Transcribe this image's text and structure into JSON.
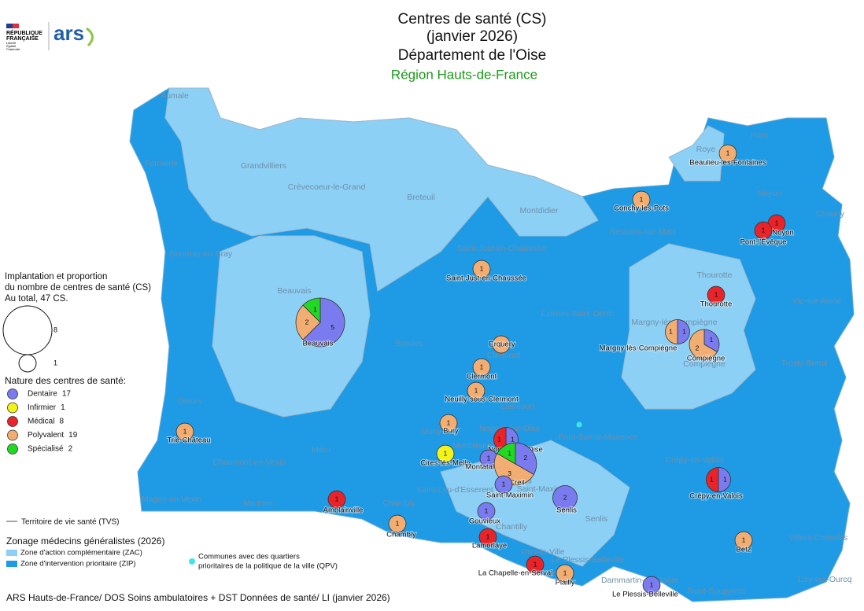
{
  "header": {
    "logo_left": [
      "RÉPUBLIQUE",
      "FRANÇAISE"
    ],
    "logo_motto": [
      "Liberté",
      "Égalité",
      "Fraternité"
    ],
    "logo_right": "ars",
    "title": [
      "Centres de santé (CS)",
      "(janvier 2026)",
      "Département de l'Oise"
    ],
    "region": "Région Hauts-de-France"
  },
  "legend": {
    "size": {
      "title": [
        "Implantation et proportion",
        "du nombre de centres de santé (CS)",
        "Au total, 47 CS."
      ],
      "values": [
        8,
        1
      ]
    },
    "nature": {
      "title": "Nature des centres de santé:",
      "items": [
        {
          "name": "Dentaire",
          "count": 17,
          "color": "#7b7bf0"
        },
        {
          "name": "Infirmier",
          "count": 1,
          "color": "#f2f21c"
        },
        {
          "name": "Médical",
          "count": 8,
          "color": "#e8232a"
        },
        {
          "name": "Polyvalent",
          "count": 19,
          "color": "#f2ae72"
        },
        {
          "name": "Spécialisé",
          "count": 2,
          "color": "#22d822"
        }
      ]
    },
    "tvs": "Territoire de vie santé (TVS)",
    "zonage": {
      "title": "Zonage médecins généralistes (2026)",
      "items": [
        {
          "name": "Zone d'action complémentaire (ZAC)",
          "color": "#8dd0f5"
        },
        {
          "name": "Zone d'intervention prioritaire (ZIP)",
          "color": "#1f9be6"
        }
      ]
    },
    "qpv": {
      "lines": [
        "Communes avec des quartiers",
        "prioritaires de la politique de la ville (QPV)"
      ],
      "color": "#3ee6e6"
    }
  },
  "map": {
    "territories": [
      "Aumale",
      "Formerie",
      "Grandvilliers",
      "Crèvecoeur-le-Grand",
      "Breteuil",
      "Montdidier",
      "Roye",
      "Ham",
      "Noyon",
      "Chauny",
      "Gournay-en-Bray",
      "Beauvais",
      "Saint-Just-en-Chaussée",
      "Ressons-sur-Matz",
      "Thourotte",
      "Vic-sur-Aisne",
      "Margny-lès-Compiègne",
      "Estrées-Saint-Denis",
      "Compiègne",
      "Bresles",
      "Clermont",
      "Trosly-Breuil",
      "Gisors",
      "Liancourt",
      "Mouy",
      "Nogent-sur-Oise",
      "Pont-Sainte-Maxence",
      "Crépy-en-Valois",
      "Montataire",
      "Méru",
      "Chaumont-en-Vexin",
      "Magny-en-Vexin",
      "Marines",
      "Chambly",
      "Saint-Leu-d'Esserent",
      "Creil",
      "Saint-Maximin",
      "Senlis",
      "Chantilly",
      "Orry-la-Ville",
      "Le Plessis-Belleville",
      "Villers-Cotterêts",
      "Lizy-sur-Ourcq",
      "Dammartin-en-Goële",
      "Saint-Soupplets"
    ],
    "centres": [
      {
        "name": "Beaulieu-les-Fontaines",
        "counts": [
          0,
          0,
          0,
          1,
          0
        ]
      },
      {
        "name": "Conchy-les-Pots",
        "counts": [
          0,
          0,
          0,
          1,
          0
        ]
      },
      {
        "name": "Noyon",
        "counts": [
          0,
          0,
          1,
          0,
          0
        ]
      },
      {
        "name": "Pont-l'Évêque",
        "counts": [
          0,
          0,
          1,
          0,
          0
        ]
      },
      {
        "name": "Saint-Just-en-Chaussée",
        "counts": [
          0,
          0,
          0,
          1,
          0
        ]
      },
      {
        "name": "Thourotte",
        "counts": [
          0,
          0,
          1,
          0,
          0
        ]
      },
      {
        "name": "Beauvais",
        "counts": [
          5,
          0,
          0,
          2,
          1
        ]
      },
      {
        "name": "Margny-lès-Compiègne",
        "counts": [
          1,
          0,
          0,
          1,
          0
        ]
      },
      {
        "name": "Compiègne",
        "counts": [
          1,
          0,
          0,
          2,
          0
        ]
      },
      {
        "name": "Erquery",
        "counts": [
          0,
          0,
          0,
          1,
          0
        ]
      },
      {
        "name": "Clermont",
        "counts": [
          0,
          0,
          0,
          1,
          0
        ]
      },
      {
        "name": "Neuilly-sous-Clermont",
        "counts": [
          0,
          0,
          0,
          1,
          0
        ]
      },
      {
        "name": "Bury",
        "counts": [
          0,
          0,
          0,
          1,
          0
        ]
      },
      {
        "name": "Trie-Château",
        "counts": [
          0,
          0,
          0,
          1,
          0
        ]
      },
      {
        "name": "Nogent-sur-Oise",
        "counts": [
          1,
          0,
          1,
          0,
          0
        ]
      },
      {
        "name": "Cires-lès-Mello",
        "counts": [
          0,
          1,
          0,
          0,
          0
        ]
      },
      {
        "name": "Montataire",
        "counts": [
          1,
          0,
          0,
          0,
          0
        ]
      },
      {
        "name": "Creil",
        "counts": [
          2,
          0,
          0,
          3,
          1
        ]
      },
      {
        "name": "Saint-Maximin",
        "counts": [
          1,
          0,
          0,
          0,
          0
        ]
      },
      {
        "name": "Senlis",
        "counts": [
          2,
          0,
          0,
          0,
          0
        ]
      },
      {
        "name": "Crépy-en-Valois",
        "counts": [
          1,
          0,
          1,
          0,
          0
        ]
      },
      {
        "name": "Amblainville",
        "counts": [
          0,
          0,
          1,
          0,
          0
        ]
      },
      {
        "name": "Gouvieux",
        "counts": [
          1,
          0,
          0,
          0,
          0
        ]
      },
      {
        "name": "Chambly",
        "counts": [
          0,
          0,
          0,
          1,
          0
        ]
      },
      {
        "name": "Lamorlaye",
        "counts": [
          0,
          0,
          1,
          0,
          0
        ]
      },
      {
        "name": "Betz",
        "counts": [
          0,
          0,
          0,
          1,
          0
        ]
      },
      {
        "name": "La Chapelle-en-Serval",
        "counts": [
          0,
          0,
          1,
          0,
          0
        ]
      },
      {
        "name": "Plailly",
        "counts": [
          0,
          0,
          0,
          1,
          0
        ]
      },
      {
        "name": "Le Plessis-Belleville",
        "counts": [
          1,
          0,
          0,
          0,
          0
        ]
      }
    ]
  },
  "footer": "ARS Hauts-de-France/ DOS Soins ambulatoires + DST Données de santé/ LI (janvier 2026)"
}
